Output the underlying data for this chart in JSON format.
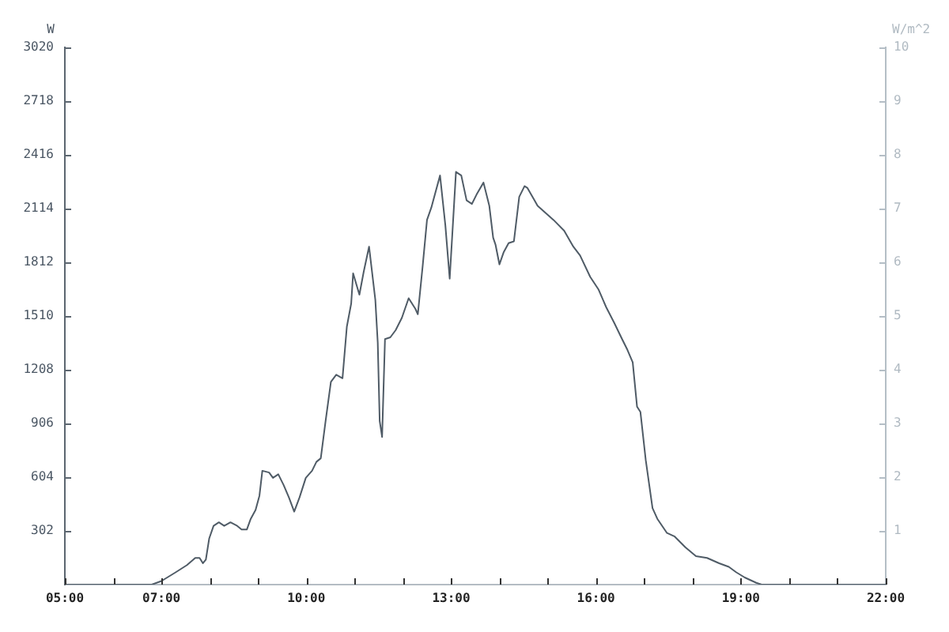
{
  "chart_data": {
    "type": "line",
    "ylabel": "W",
    "y2label": "W/m^2",
    "x": [
      5,
      6.8,
      7.0,
      7.3,
      7.53,
      7.7,
      7.79,
      7.86,
      7.92,
      7.99,
      8.08,
      8.19,
      8.3,
      8.43,
      8.57,
      8.66,
      8.77,
      8.85,
      8.95,
      9.03,
      9.09,
      9.23,
      9.31,
      9.42,
      9.53,
      9.64,
      9.75,
      9.86,
      9.99,
      10.12,
      10.21,
      10.3,
      10.4,
      10.51,
      10.62,
      10.75,
      10.84,
      10.93,
      10.97,
      11.1,
      11.19,
      11.3,
      11.43,
      11.48,
      11.52,
      11.57,
      11.63,
      11.74,
      11.85,
      11.98,
      12.12,
      12.26,
      12.31,
      12.41,
      12.5,
      12.59,
      12.77,
      12.88,
      12.97,
      13.1,
      13.21,
      13.32,
      13.43,
      13.54,
      13.67,
      13.79,
      13.87,
      13.92,
      14.0,
      14.09,
      14.19,
      14.3,
      14.41,
      14.52,
      14.58,
      14.79,
      15.12,
      15.34,
      15.53,
      15.67,
      15.88,
      16.05,
      16.21,
      16.38,
      16.54,
      16.65,
      16.76,
      16.85,
      16.92,
      17.03,
      17.17,
      17.27,
      17.47,
      17.63,
      17.85,
      18.07,
      18.3,
      18.55,
      18.75,
      18.9,
      19.08,
      19.32,
      19.43,
      22
    ],
    "values": [
      0,
      0,
      20,
      70,
      110,
      150,
      150,
      120,
      140,
      260,
      330,
      350,
      330,
      350,
      330,
      310,
      310,
      370,
      420,
      500,
      640,
      630,
      600,
      620,
      560,
      490,
      410,
      490,
      600,
      640,
      690,
      710,
      920,
      1140,
      1180,
      1160,
      1450,
      1580,
      1750,
      1630,
      1760,
      1900,
      1600,
      1360,
      920,
      830,
      1380,
      1390,
      1430,
      1500,
      1610,
      1550,
      1520,
      1790,
      2050,
      2120,
      2300,
      2020,
      1720,
      2320,
      2300,
      2160,
      2140,
      2200,
      2260,
      2130,
      1950,
      1910,
      1800,
      1870,
      1920,
      1930,
      2180,
      2240,
      2230,
      2130,
      2050,
      1990,
      1900,
      1850,
      1730,
      1660,
      1560,
      1470,
      1380,
      1320,
      1250,
      1000,
      970,
      700,
      430,
      370,
      290,
      270,
      210,
      160,
      150,
      120,
      100,
      70,
      40,
      10,
      0,
      0
    ],
    "color": "#4f5b66",
    "xlim": [
      5,
      22
    ],
    "xticks": [
      {
        "value": 5,
        "label": "05:00"
      },
      {
        "value": 6,
        "label": null
      },
      {
        "value": 7,
        "label": "07:00"
      },
      {
        "value": 8,
        "label": null
      },
      {
        "value": 9,
        "label": null
      },
      {
        "value": 10,
        "label": "10:00"
      },
      {
        "value": 11,
        "label": null
      },
      {
        "value": 12,
        "label": null
      },
      {
        "value": 13,
        "label": "13:00"
      },
      {
        "value": 14,
        "label": null
      },
      {
        "value": 15,
        "label": null
      },
      {
        "value": 16,
        "label": "16:00"
      },
      {
        "value": 17,
        "label": null
      },
      {
        "value": 18,
        "label": null
      },
      {
        "value": 19,
        "label": "19:00"
      },
      {
        "value": 20,
        "label": null
      },
      {
        "value": 21,
        "label": null
      },
      {
        "value": 22,
        "label": "22:00"
      }
    ],
    "ylim": [
      0,
      3020
    ],
    "yticks": [
      302,
      604,
      906,
      1208,
      1510,
      1812,
      2114,
      2416,
      2718,
      3020
    ],
    "y2lim": [
      0,
      10
    ],
    "y2ticks": [
      1,
      2,
      3,
      4,
      5,
      6,
      7,
      8,
      9,
      10
    ],
    "grid": false,
    "legend": false,
    "marker": "none",
    "line_style": "solid"
  }
}
